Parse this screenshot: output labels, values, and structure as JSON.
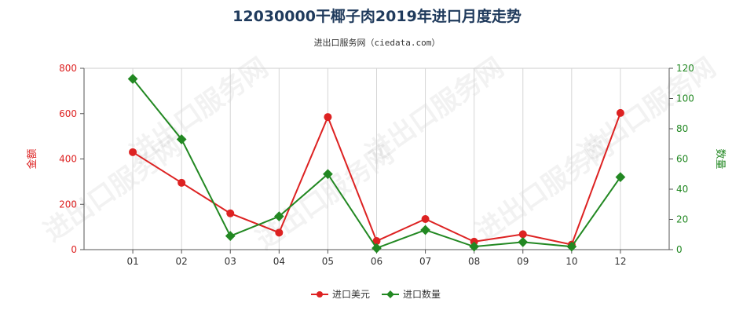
{
  "chart_data": {
    "type": "line",
    "title": "12030000干椰子肉2019年进口月度走势",
    "subtitle": "进出口服务网（ciedata.com）",
    "categories": [
      "01",
      "02",
      "03",
      "04",
      "05",
      "06",
      "07",
      "08",
      "09",
      "10",
      "12"
    ],
    "y_left": {
      "label": "金额",
      "range": [
        0,
        800
      ],
      "ticks": [
        "0",
        "200",
        "400",
        "600",
        "800"
      ],
      "color": "#dd2222"
    },
    "y_right": {
      "label": "数量",
      "range": [
        0,
        120
      ],
      "ticks": [
        "0",
        "20",
        "40",
        "60",
        "80",
        "100",
        "120"
      ],
      "color": "#228822"
    },
    "series": [
      {
        "name": "进口美元",
        "axis": "left",
        "color": "#dd2222",
        "values": [
          430,
          295,
          160,
          75,
          585,
          38,
          135,
          35,
          68,
          22,
          603
        ]
      },
      {
        "name": "进口数量",
        "axis": "right",
        "color": "#228822",
        "values": [
          113,
          73,
          9,
          22,
          50,
          1,
          13,
          2,
          5,
          2,
          48
        ]
      }
    ],
    "watermark": "进出口服务网",
    "legend_position": "bottom-center",
    "grid": "vertical"
  }
}
